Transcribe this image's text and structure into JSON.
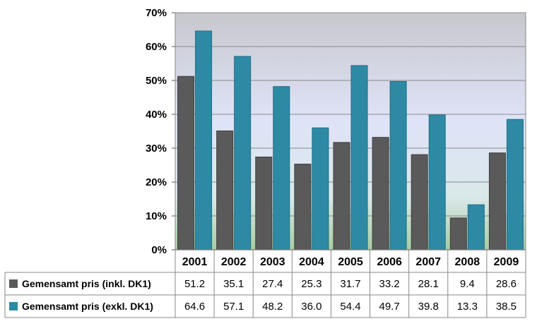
{
  "chart_data": {
    "type": "bar",
    "categories": [
      "2001",
      "2002",
      "2003",
      "2004",
      "2005",
      "2006",
      "2007",
      "2008",
      "2009"
    ],
    "series": [
      {
        "name": "Gemensamt pris (inkl. DK1)",
        "color": "#5a5a5a",
        "values": [
          51.2,
          35.1,
          27.4,
          25.3,
          31.7,
          33.2,
          28.1,
          9.4,
          28.6
        ],
        "labels": [
          "51.2",
          "35.1",
          "27.4",
          "25.3",
          "31.7",
          "33.2",
          "28.1",
          "9.4",
          "28.6"
        ]
      },
      {
        "name": "Gemensamt pris (exkl. DK1)",
        "color": "#2e8aa4",
        "values": [
          64.6,
          57.1,
          48.2,
          36.0,
          54.4,
          49.7,
          39.8,
          13.3,
          38.5
        ],
        "labels": [
          "64.6",
          "57.1",
          "48.2",
          "36.0",
          "54.4",
          "49.7",
          "39.8",
          "13.3",
          "38.5"
        ]
      }
    ],
    "ylim": [
      0,
      70
    ],
    "yticks": [
      "0%",
      "10%",
      "20%",
      "30%",
      "40%",
      "50%",
      "60%",
      "70%"
    ],
    "grid": true,
    "legend": "data-table"
  }
}
